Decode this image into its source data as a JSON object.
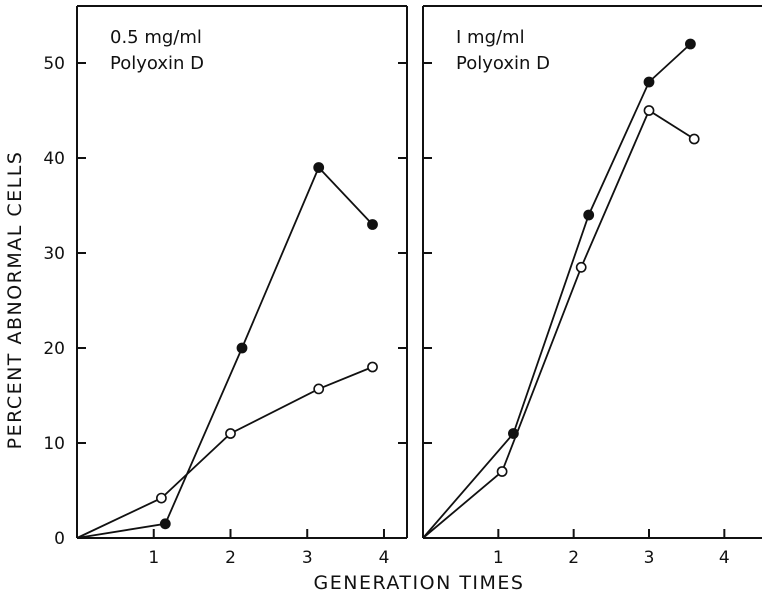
{
  "figure": {
    "xlabel": "GENERATION TIMES",
    "ylabel": "PERCENT ABNORMAL CELLS"
  },
  "chart_data": [
    {
      "type": "line",
      "annotation": [
        "0.5 mg/ml",
        "Polyoxin D"
      ],
      "xlim": [
        0,
        4.3
      ],
      "ylim": [
        0,
        56
      ],
      "xticks": [
        "1",
        "2",
        "3",
        "4"
      ],
      "yticks": [
        "0",
        "10",
        "20",
        "30",
        "40",
        "50"
      ],
      "series": [
        {
          "marker": "filled",
          "x": [
            0,
            1.15,
            2.15,
            3.15,
            3.85
          ],
          "y": [
            0,
            1.5,
            20,
            39,
            33
          ]
        },
        {
          "marker": "open",
          "x": [
            0,
            1.1,
            2.0,
            3.15,
            3.85
          ],
          "y": [
            0,
            4.2,
            11,
            15.7,
            18
          ]
        }
      ]
    },
    {
      "type": "line",
      "annotation": [
        "I mg/ml",
        "Polyoxin D"
      ],
      "xlim": [
        0,
        4.5
      ],
      "ylim": [
        0,
        56
      ],
      "xticks": [
        "1",
        "2",
        "3",
        "4"
      ],
      "yticks": [
        "0",
        "10",
        "20",
        "30",
        "40",
        "50"
      ],
      "series": [
        {
          "marker": "filled",
          "x": [
            0,
            1.2,
            2.2,
            3.0,
            3.55
          ],
          "y": [
            0,
            11,
            34,
            48,
            52
          ]
        },
        {
          "marker": "open",
          "x": [
            0,
            1.05,
            2.1,
            3.0,
            3.6
          ],
          "y": [
            0,
            7,
            28.5,
            45,
            42
          ]
        }
      ]
    }
  ]
}
